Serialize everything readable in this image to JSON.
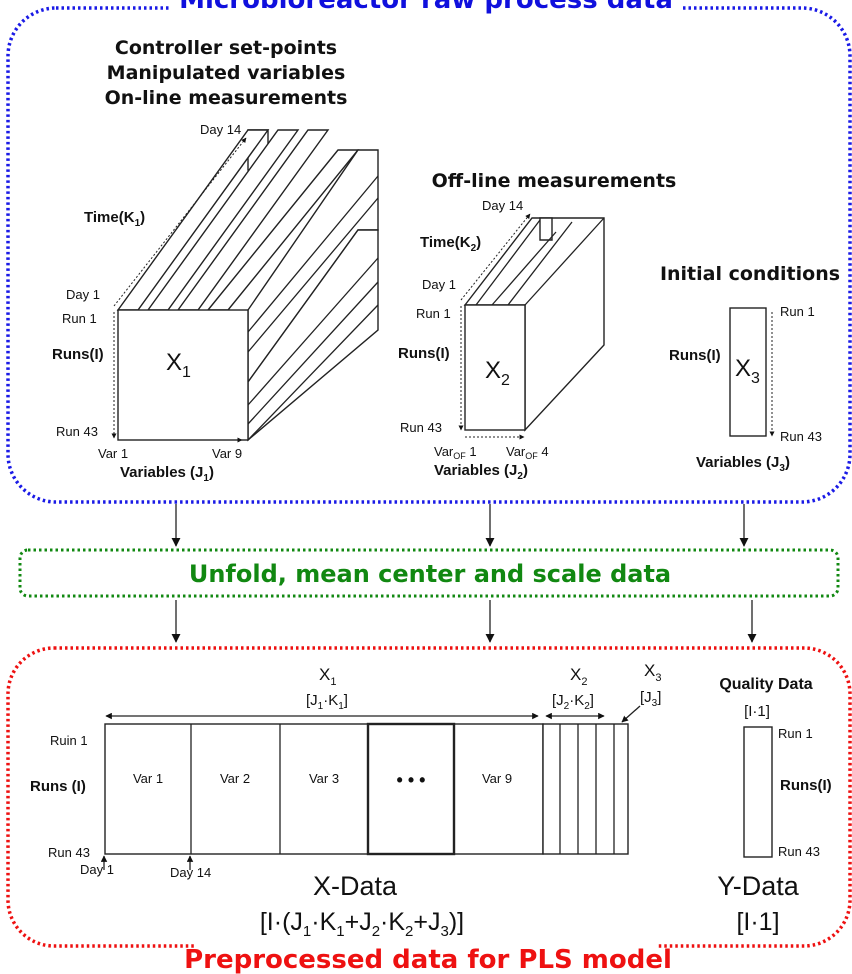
{
  "sections": {
    "raw_title": "Microbioreactor raw process data",
    "unfold_title": "Unfold, mean center and scale data",
    "preprocessed_title": "Preprocessed data for PLS model"
  },
  "block_x1": {
    "headings": [
      "Controller set-points",
      "Manipulated variables",
      "On-line measurements"
    ],
    "day_end": "Day 14",
    "time_label": "Time(K",
    "time_sub": "1",
    "time_close": ")",
    "day_start": "Day 1",
    "run_start": "Run 1",
    "runs_label": "Runs(I)",
    "matrix": "X",
    "matrix_sub": "1",
    "run_end": "Run 43",
    "var_start": "Var 1",
    "var_end": "Var 9",
    "variables_label": "Variables (J",
    "variables_sub": "1",
    "variables_close": ")"
  },
  "block_x2": {
    "heading": "Off-line measurements",
    "day_end": "Day 14",
    "time_label": "Time(K",
    "time_sub": "2",
    "time_close": ")",
    "day_start": "Day 1",
    "run_start": "Run 1",
    "runs_label": "Runs(I)",
    "matrix": "X",
    "matrix_sub": "2",
    "run_end": "Run 43",
    "var_prefix": "Var",
    "var_sub": "OF",
    "var_start_num": " 1",
    "var_end_num": " 4",
    "variables_label": "Variables (J",
    "variables_sub": "2",
    "variables_close": ")"
  },
  "block_x3": {
    "heading": "Initial conditions",
    "run_start": "Run 1",
    "runs_label": "Runs(I)",
    "matrix": "X",
    "matrix_sub": "3",
    "run_end": "Run 43",
    "variables_label": "Variables (J",
    "variables_sub": "3",
    "variables_close": ")"
  },
  "xdata": {
    "x1_label": "X",
    "x1_sub": "1",
    "x1_dims": [
      "[J",
      "1",
      "·K",
      "1",
      "]"
    ],
    "x2_label": "X",
    "x2_sub": "2",
    "x2_dims": [
      "[J",
      "2",
      "·K",
      "2",
      "]"
    ],
    "x3_label": "X",
    "x3_sub": "3",
    "x3_dims": [
      "[J",
      "3",
      "]"
    ],
    "run_start": "Ruin 1",
    "runs_label": "Runs (I)",
    "run_end": "Run 43",
    "day_start": "Day 1",
    "day_end": "Day 14",
    "columns": [
      "Var 1",
      "Var 2",
      "Var 3",
      "• • •",
      "Var  9"
    ],
    "title": "X-Data",
    "formula": [
      "[I·(J",
      "1",
      "·K",
      "1",
      "+J",
      "2",
      "·K",
      "2",
      "+J",
      "3",
      ")]"
    ]
  },
  "ydata": {
    "quality_label": "Quality Data",
    "dims": "[I·1]",
    "run_start": "Run 1",
    "runs_label": "Runs(I)",
    "run_end": "Run 43",
    "title": "Y-Data",
    "formula": "[I·1]"
  },
  "colors": {
    "raw_border": "#1a1ae6",
    "unfold_border": "#118811",
    "preprocessed_border": "#ee1111"
  }
}
